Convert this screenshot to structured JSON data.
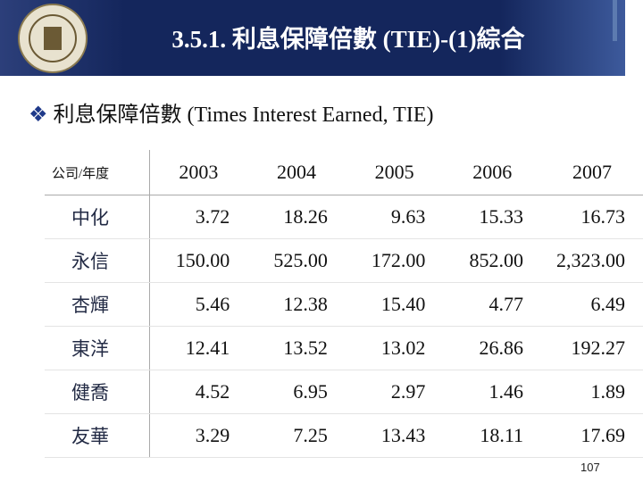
{
  "header": {
    "title": "3.5.1. 利息保障倍數 (TIE)-(1)綜合"
  },
  "bullet": "利息保障倍數 (Times Interest Earned, TIE)",
  "table": {
    "columns": [
      "公司/年度",
      "2003",
      "2004",
      "2005",
      "2006",
      "2007"
    ],
    "rows": [
      [
        "中化",
        "3.72",
        "18.26",
        "9.63",
        "15.33",
        "16.73"
      ],
      [
        "永信",
        "150.00",
        "525.00",
        "172.00",
        "852.00",
        "2,323.00"
      ],
      [
        "杏輝",
        "5.46",
        "12.38",
        "15.40",
        "4.77",
        "6.49"
      ],
      [
        "東洋",
        "12.41",
        "13.52",
        "13.02",
        "26.86",
        "192.27"
      ],
      [
        "健喬",
        "4.52",
        "6.95",
        "2.97",
        "1.46",
        "1.89"
      ],
      [
        "友華",
        "3.29",
        "7.25",
        "13.43",
        "18.11",
        "17.69"
      ]
    ]
  },
  "page_number": "107"
}
